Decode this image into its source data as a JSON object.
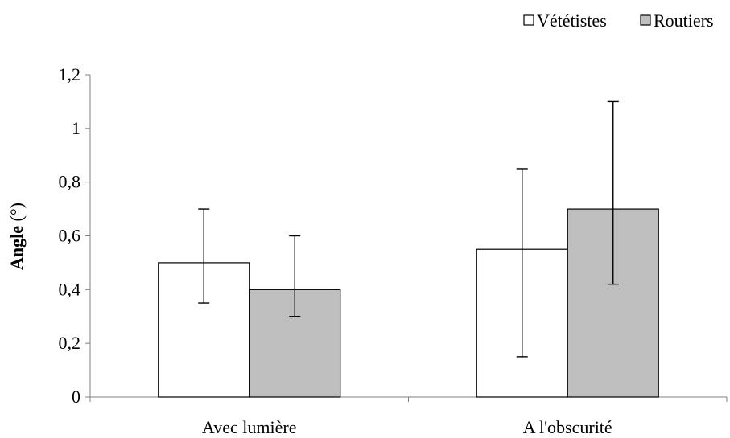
{
  "chart_data": {
    "type": "bar",
    "categories": [
      "Avec lumière",
      "A l'obscurité"
    ],
    "series": [
      {
        "name": "Vététistes",
        "values": [
          0.5,
          0.55
        ],
        "err_low": [
          0.35,
          0.15
        ],
        "err_high": [
          0.7,
          0.85
        ],
        "color": "#ffffff"
      },
      {
        "name": "Routiers",
        "values": [
          0.4,
          0.7
        ],
        "err_low": [
          0.3,
          0.42
        ],
        "err_high": [
          0.6,
          1.1
        ],
        "color": "#bfbfbf"
      }
    ],
    "title": "",
    "xlabel": "",
    "ylabel_bold": "Angle",
    "ylabel_rest": " (°)",
    "ylim": [
      0,
      1.2
    ],
    "yticks": [
      0,
      0.2,
      0.4,
      0.6,
      0.8,
      1,
      1.2
    ],
    "ytick_labels": [
      "0",
      "0,2",
      "0,4",
      "0,6",
      "0,8",
      "1",
      "1,2"
    ],
    "grid": false,
    "legend_position": "top-right"
  }
}
